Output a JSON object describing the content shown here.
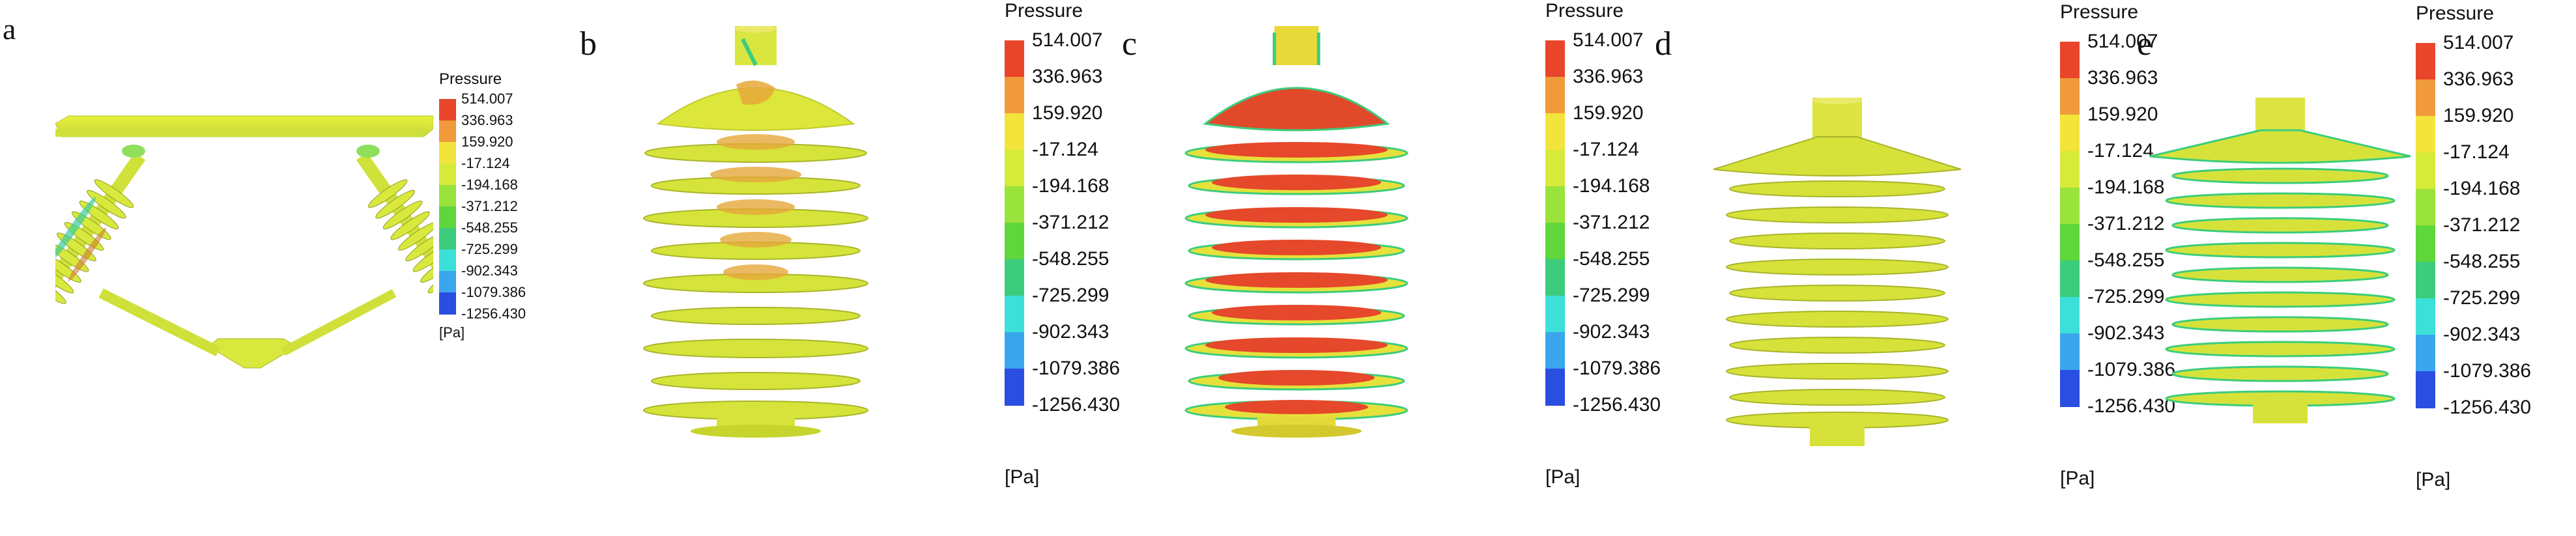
{
  "colorbar": {
    "title": "Pressure",
    "unit": "[Pa]",
    "ticks": [
      "514.007",
      "336.963",
      "159.920",
      "-17.124",
      "-194.168",
      "-371.212",
      "-548.255",
      "-725.299",
      "-902.343",
      "-1079.386",
      "-1256.430"
    ],
    "colors": [
      "#e8452a",
      "#f09a3c",
      "#f3e43c",
      "#d6ea3a",
      "#9ae23c",
      "#5fd63c",
      "#3ccc7c",
      "#3ce0d8",
      "#3aa6ee",
      "#2a4ee0"
    ]
  },
  "panels": [
    {
      "label": "a",
      "kind": "triangle"
    },
    {
      "label": "b",
      "kind": "sheds-orange"
    },
    {
      "label": "c",
      "kind": "sheds-red"
    },
    {
      "label": "d",
      "kind": "sheds-plain"
    },
    {
      "label": "e",
      "kind": "sheds-thin"
    }
  ]
}
